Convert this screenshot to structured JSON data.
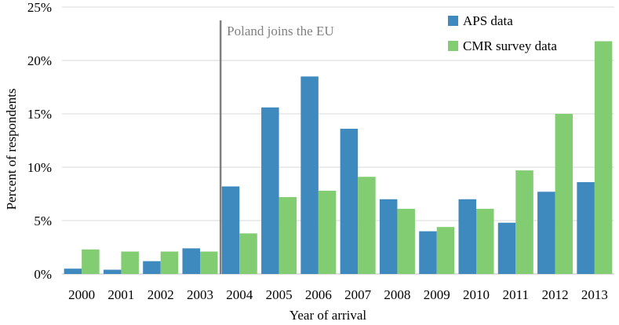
{
  "chart_data": {
    "type": "bar",
    "categories": [
      "2000",
      "2001",
      "2002",
      "2003",
      "2004",
      "2005",
      "2006",
      "2007",
      "2008",
      "2009",
      "2010",
      "2011",
      "2012",
      "2013"
    ],
    "series": [
      {
        "name": "APS data",
        "color": "#3e8abf",
        "values": [
          0.5,
          0.4,
          1.2,
          2.4,
          8.2,
          15.6,
          18.5,
          13.6,
          7.0,
          4.0,
          7.0,
          4.8,
          7.7,
          8.6
        ]
      },
      {
        "name": "CMR survey data",
        "color": "#82cc72",
        "values": [
          2.3,
          2.1,
          2.1,
          2.1,
          3.8,
          7.2,
          7.8,
          9.1,
          6.1,
          4.4,
          6.1,
          9.7,
          15.0,
          21.8
        ]
      }
    ],
    "y_ticks": [
      "0%",
      "5%",
      "10%",
      "15%",
      "20%",
      "25%"
    ],
    "ylim": [
      0,
      25
    ],
    "ylabel": "Percent of respondents",
    "xlabel": "Year of arrival",
    "grid": true,
    "legend_position": "top-right",
    "annotation": {
      "text": "Poland joins the EU",
      "at_category": "2004",
      "color": "#808080"
    }
  }
}
